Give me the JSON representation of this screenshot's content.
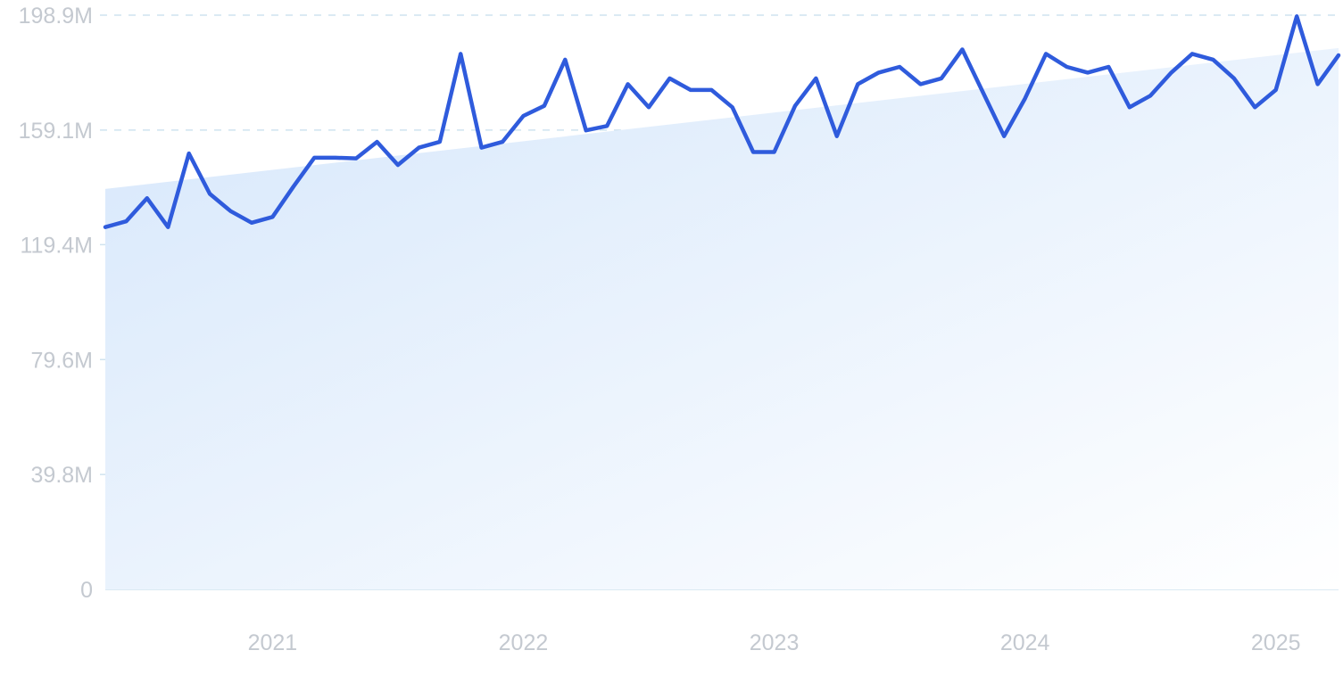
{
  "chart_data": {
    "type": "line",
    "title": "",
    "xlabel": "",
    "ylabel": "",
    "colors": {
      "line": "#2f5bdc",
      "area_start": "#d6e7fb",
      "area_end": "#ffffff",
      "grid": "#cfe3ef",
      "tick_text": "#c4c9d0"
    },
    "grid": true,
    "legend": "none",
    "ylim": [
      0,
      198.9
    ],
    "y_ticks": [
      {
        "value": 0,
        "label": "0"
      },
      {
        "value": 39.8,
        "label": "39.8M"
      },
      {
        "value": 79.6,
        "label": "79.6M"
      },
      {
        "value": 119.4,
        "label": "119.4M"
      },
      {
        "value": 159.1,
        "label": "159.1M"
      },
      {
        "value": 198.9,
        "label": "198.9M"
      }
    ],
    "x_ticks": [
      {
        "value": "2021-01",
        "label": "2021"
      },
      {
        "value": "2022-01",
        "label": "2022"
      },
      {
        "value": "2023-01",
        "label": "2023"
      },
      {
        "value": "2024-01",
        "label": "2024"
      },
      {
        "value": "2025-01",
        "label": "2025"
      }
    ],
    "x_range": [
      "2020-05",
      "2025-04"
    ],
    "trend": {
      "start": {
        "x": "2020-05",
        "y": 138.7
      },
      "end": {
        "x": "2025-04",
        "y": 187.5
      }
    },
    "series": [
      {
        "x": [
          "2020-05",
          "2020-06",
          "2020-07",
          "2020-08",
          "2020-09",
          "2020-10",
          "2020-11",
          "2020-12",
          "2021-01",
          "2021-02",
          "2021-03",
          "2021-04",
          "2021-05",
          "2021-06",
          "2021-07",
          "2021-08",
          "2021-09",
          "2021-10",
          "2021-11",
          "2021-12",
          "2022-01",
          "2022-02",
          "2022-03",
          "2022-04",
          "2022-05",
          "2022-06",
          "2022-07",
          "2022-08",
          "2022-09",
          "2022-10",
          "2022-11",
          "2022-12",
          "2023-01",
          "2023-02",
          "2023-03",
          "2023-04",
          "2023-05",
          "2023-06",
          "2023-07",
          "2023-08",
          "2023-09",
          "2023-10",
          "2023-11",
          "2023-12",
          "2024-01",
          "2024-02",
          "2024-03",
          "2024-04",
          "2024-05",
          "2024-06",
          "2024-07",
          "2024-08",
          "2024-09",
          "2024-10",
          "2024-11",
          "2024-12",
          "2025-01",
          "2025-02",
          "2025-03",
          "2025-04"
        ],
        "values": [
          125.5,
          127.5,
          135.5,
          125.5,
          151.0,
          137.0,
          131.0,
          127.0,
          129.0,
          139.5,
          149.5,
          149.5,
          149.3,
          155.0,
          147.0,
          153.0,
          155.0,
          185.5,
          153.0,
          155.0,
          164.0,
          167.5,
          183.5,
          159.0,
          160.5,
          175.0,
          167.0,
          177.0,
          173.0,
          173.0,
          167.0,
          151.5,
          151.5,
          167.5,
          177.0,
          157.0,
          175.0,
          179.0,
          181.0,
          175.0,
          177.0,
          187.0,
          172.0,
          157.0,
          170.0,
          185.5,
          181.0,
          179.0,
          181.0,
          167.0,
          171.0,
          179.0,
          185.5,
          183.5,
          177.0,
          167.0,
          173.0,
          198.5,
          175.0,
          185.0
        ]
      }
    ]
  }
}
